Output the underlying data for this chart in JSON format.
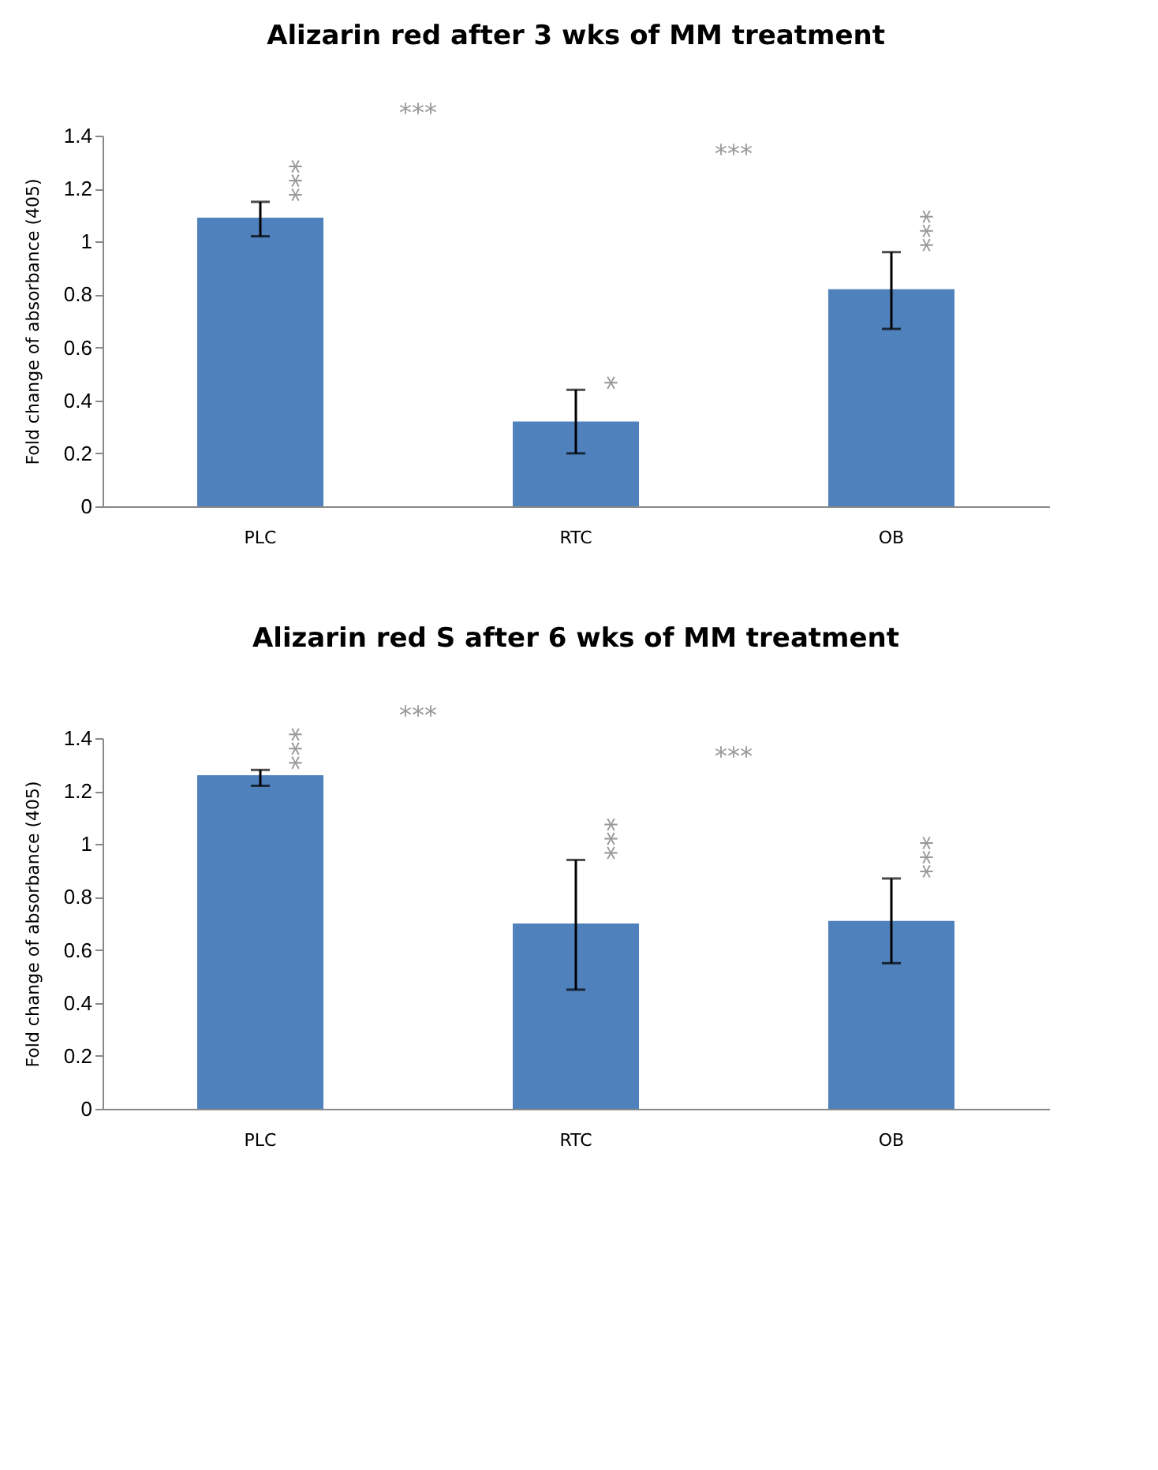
{
  "chart_data": [
    {
      "type": "bar",
      "title": "Alizarin red after 3 wks of MM treatment",
      "ylabel": "Fold change of absorbance (405)",
      "categories": [
        "PLC",
        "RTC",
        "OB"
      ],
      "values": [
        1.09,
        0.32,
        0.82
      ],
      "color": "#4f81bd",
      "errors": [
        [
          1.02,
          1.15
        ],
        [
          0.2,
          0.44
        ],
        [
          0.67,
          0.96
        ]
      ],
      "ylim": [
        0,
        1.4
      ],
      "yticks": [
        0,
        0.2,
        0.4,
        0.6,
        0.8,
        1,
        1.2,
        1.4
      ],
      "grid": false,
      "annotations": [
        "***",
        "*",
        "***",
        "***",
        "***"
      ]
    },
    {
      "type": "bar",
      "title": "Alizarin red S after 6 wks of MM treatment",
      "ylabel": "Fold change of absorbance (405)",
      "categories": [
        "PLC",
        "RTC",
        "OB"
      ],
      "values": [
        1.26,
        0.7,
        0.71
      ],
      "color": "#4f81bd",
      "errors": [
        [
          1.22,
          1.28
        ],
        [
          0.45,
          0.94
        ],
        [
          0.55,
          0.87
        ]
      ],
      "ylim": [
        0,
        1.4
      ],
      "yticks": [
        0,
        0.2,
        0.4,
        0.6,
        0.8,
        1,
        1.2,
        1.4
      ],
      "grid": false,
      "annotations": [
        "***",
        "***",
        "***",
        "***",
        "***"
      ]
    }
  ]
}
